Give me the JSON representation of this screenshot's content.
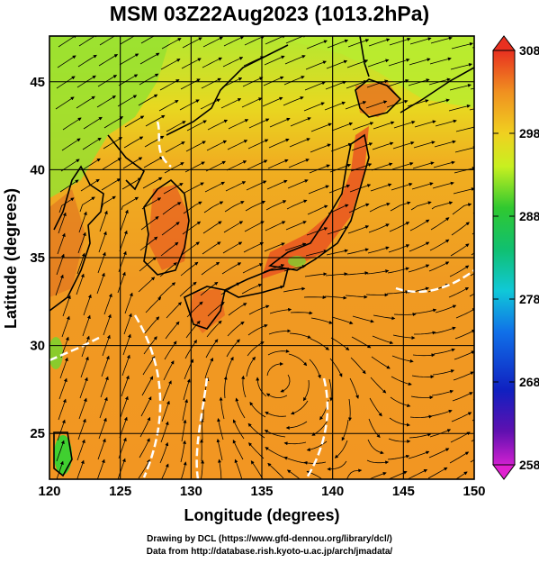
{
  "title": "MSM 03Z22Aug2023 (1013.2hPa)",
  "axes": {
    "xlabel": "Longitude (degrees)",
    "ylabel": "Latitude  (degrees)",
    "x_ticks": [
      120,
      125,
      130,
      135,
      140,
      145,
      150
    ],
    "y_ticks": [
      25,
      30,
      35,
      40,
      45
    ],
    "x_range": [
      120,
      150
    ],
    "y_range": [
      22.4,
      47.6
    ]
  },
  "colorbar": {
    "ticks": [
      308,
      298,
      288,
      278,
      268,
      258
    ],
    "min": 258,
    "max": 308,
    "colors": [
      "#d01ad0",
      "#2010b0",
      "#1050e0",
      "#20c0e0",
      "#20b060",
      "#30d030",
      "#c8f020",
      "#f0e020",
      "#f0a020",
      "#f07020",
      "#e83020"
    ]
  },
  "credits": {
    "line1": "Drawing by DCL (https://www.gfd-dennou.org/library/dcl/)",
    "line2": "Data from http://database.rish.kyoto-u.ac.jp/arch/jmadata/"
  }
}
